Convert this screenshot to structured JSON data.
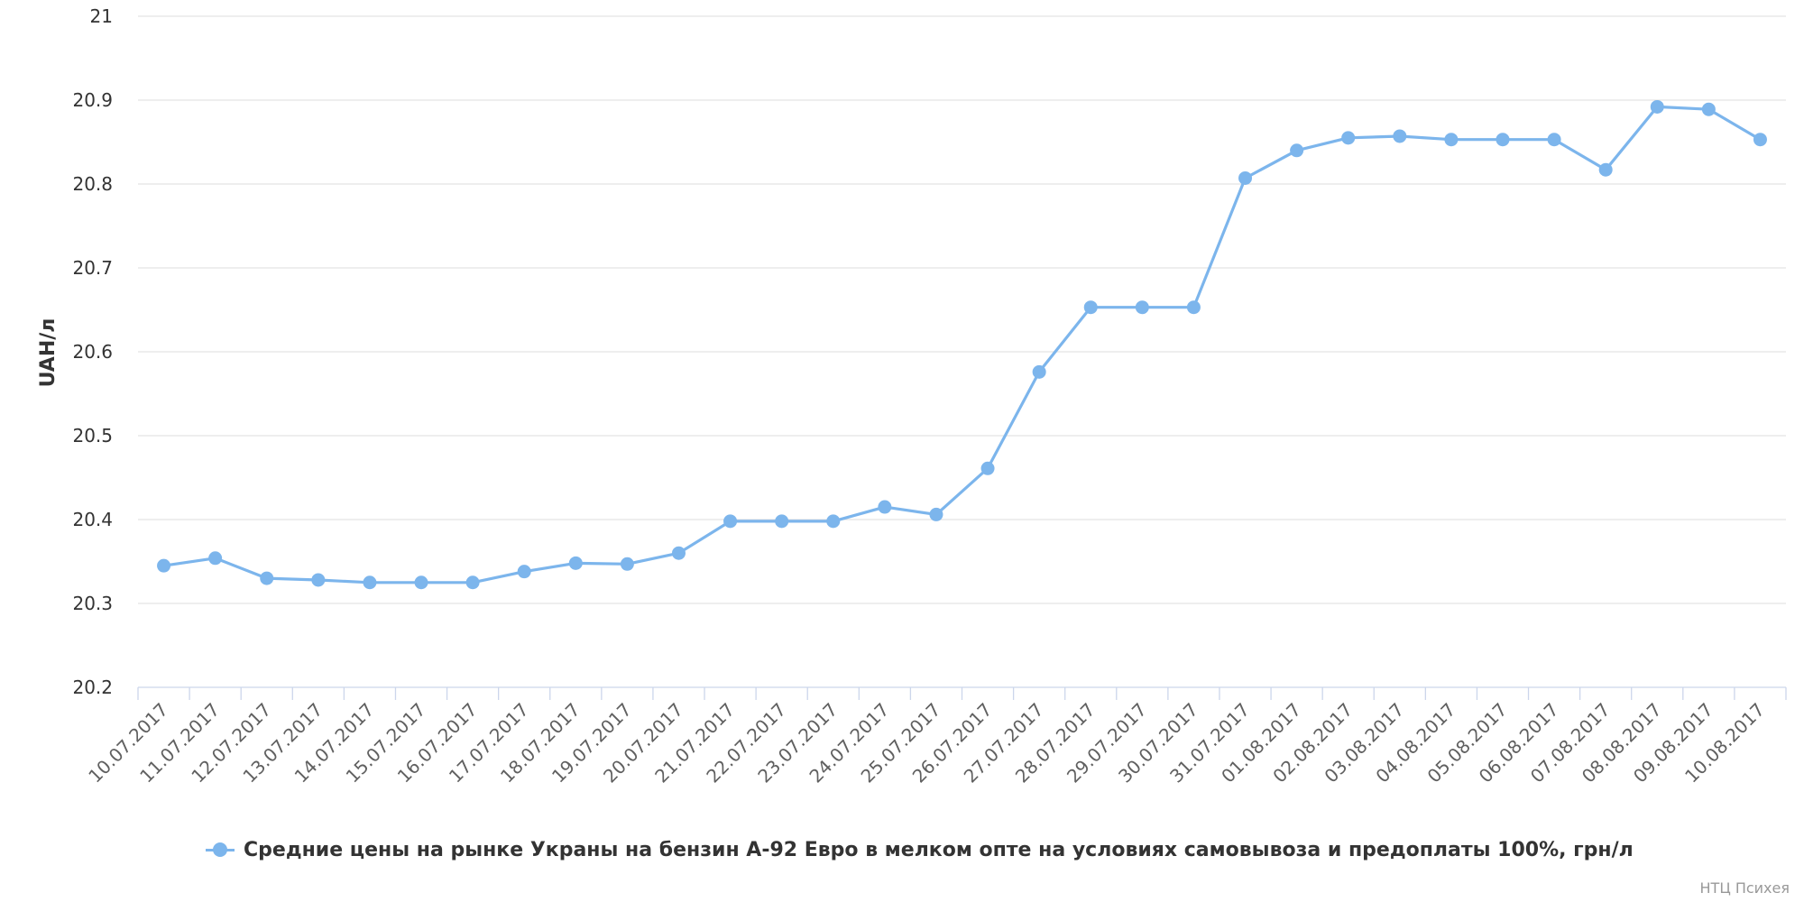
{
  "chart_data": {
    "type": "line",
    "title": "",
    "ylabel": "UAH/л",
    "xlabel": "",
    "ylim": [
      20.2,
      21
    ],
    "yticks": [
      "20.2",
      "20.3",
      "20.4",
      "20.5",
      "20.6",
      "20.7",
      "20.8",
      "20.9",
      "21"
    ],
    "grid": true,
    "legend_position": "bottom",
    "categories": [
      "10.07.2017",
      "11.07.2017",
      "12.07.2017",
      "13.07.2017",
      "14.07.2017",
      "15.07.2017",
      "16.07.2017",
      "17.07.2017",
      "18.07.2017",
      "19.07.2017",
      "20.07.2017",
      "21.07.2017",
      "22.07.2017",
      "23.07.2017",
      "24.07.2017",
      "25.07.2017",
      "26.07.2017",
      "27.07.2017",
      "28.07.2017",
      "29.07.2017",
      "30.07.2017",
      "31.07.2017",
      "01.08.2017",
      "02.08.2017",
      "03.08.2017",
      "04.08.2017",
      "05.08.2017",
      "06.08.2017",
      "07.08.2017",
      "08.08.2017",
      "09.08.2017",
      "10.08.2017"
    ],
    "series": [
      {
        "name": "Средние цены на рынке Украны на бензин А-92 Евро в мелком опте на условиях самовывоза и предоплаты 100%, грн/л",
        "color": "#7cb5ec",
        "values": [
          20.345,
          20.354,
          20.33,
          20.328,
          20.325,
          20.325,
          20.325,
          20.338,
          20.348,
          20.347,
          20.36,
          20.398,
          20.398,
          20.398,
          20.415,
          20.406,
          20.461,
          20.576,
          20.653,
          20.653,
          20.653,
          20.807,
          20.84,
          20.855,
          20.857,
          20.853,
          20.853,
          20.853,
          20.817,
          20.892,
          20.889,
          20.853
        ]
      }
    ]
  },
  "credits": "НТЦ Психея"
}
